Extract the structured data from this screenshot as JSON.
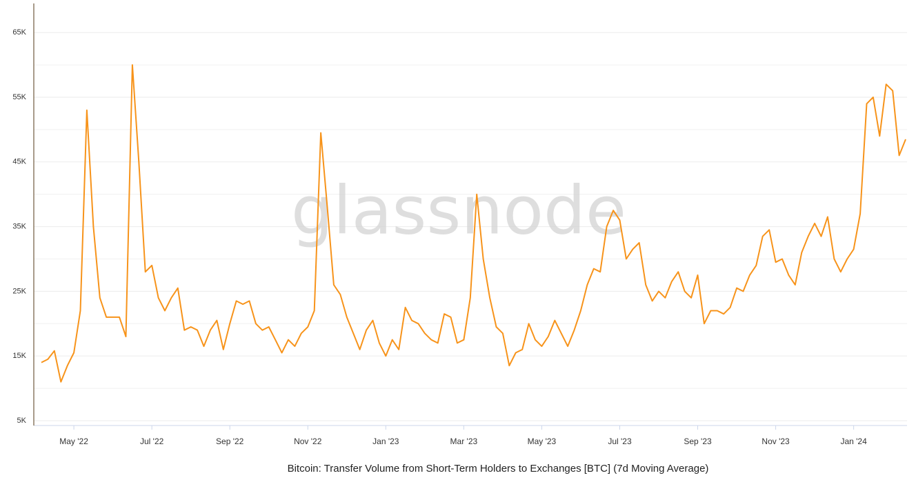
{
  "chart_data": {
    "type": "line",
    "title": "Bitcoin: Transfer Volume from Short-Term Holders to Exchanges [BTC] (7d Moving Average)",
    "watermark": "glassnode",
    "color": "#f7931a",
    "grid": true,
    "ylim": [
      4250,
      69500
    ],
    "yticks": [
      {
        "value": 5000,
        "label": "5K"
      },
      {
        "value": 15000,
        "label": "15K"
      },
      {
        "value": 25000,
        "label": "25K"
      },
      {
        "value": 35000,
        "label": "35K"
      },
      {
        "value": 45000,
        "label": "45K"
      },
      {
        "value": 55000,
        "label": "55K"
      },
      {
        "value": 65000,
        "label": "65K"
      }
    ],
    "ygrid": [
      10000,
      20000,
      30000,
      40000,
      50000,
      60000
    ],
    "categories": [
      null,
      null,
      null,
      null,
      null,
      "May '22",
      null,
      null,
      null,
      null,
      null,
      null,
      null,
      null,
      null,
      null,
      null,
      "Jul '22",
      null,
      null,
      null,
      null,
      null,
      null,
      null,
      null,
      null,
      null,
      null,
      "Sep '22",
      null,
      null,
      null,
      null,
      null,
      null,
      null,
      null,
      null,
      null,
      null,
      "Nov '22",
      null,
      null,
      null,
      null,
      null,
      null,
      null,
      null,
      null,
      null,
      null,
      "Jan '23",
      null,
      null,
      null,
      null,
      null,
      null,
      null,
      null,
      null,
      null,
      null,
      "Mar '23",
      null,
      null,
      null,
      null,
      null,
      null,
      null,
      null,
      null,
      null,
      null,
      "May '23",
      null,
      null,
      null,
      null,
      null,
      null,
      null,
      null,
      null,
      null,
      null,
      "Jul '23",
      null,
      null,
      null,
      null,
      null,
      null,
      null,
      null,
      null,
      null,
      null,
      "Sep '23",
      null,
      null,
      null,
      null,
      null,
      null,
      null,
      null,
      null,
      null,
      null,
      "Nov '23",
      null,
      null,
      null,
      null,
      null,
      null,
      null,
      null,
      null,
      null,
      null,
      "Jan '24",
      null,
      null,
      null,
      null,
      null,
      null,
      null,
      null
    ],
    "values": [
      14000,
      14500,
      15800,
      11000,
      13500,
      15500,
      22000,
      53000,
      35000,
      24000,
      21000,
      21000,
      21000,
      18000,
      60000,
      45000,
      28000,
      29000,
      24000,
      22000,
      24000,
      25500,
      19000,
      19500,
      19000,
      16500,
      19000,
      20500,
      16000,
      20000,
      23500,
      23000,
      23500,
      20000,
      19000,
      19500,
      17500,
      15500,
      17500,
      16500,
      18500,
      19500,
      22000,
      49500,
      38000,
      26000,
      24500,
      21000,
      18500,
      16000,
      19000,
      20500,
      17000,
      15000,
      17500,
      16000,
      22500,
      20500,
      20000,
      18500,
      17500,
      17000,
      21500,
      21000,
      17000,
      17500,
      24000,
      40000,
      30000,
      24000,
      19500,
      18500,
      13500,
      15500,
      16000,
      20000,
      17500,
      16500,
      18000,
      20500,
      18500,
      16500,
      19000,
      22000,
      26000,
      28500,
      28000,
      35000,
      37500,
      36000,
      30000,
      31500,
      32500,
      26000,
      23500,
      25000,
      24000,
      26500,
      28000,
      25000,
      24000,
      27500,
      20000,
      22000,
      22000,
      21500,
      22500,
      25500,
      25000,
      27500,
      29000,
      33500,
      34500,
      29500,
      30000,
      27500,
      26000,
      31000,
      33500,
      35500,
      33500,
      36500,
      30000,
      28000,
      30000,
      31500,
      37000,
      54000,
      55000,
      49000,
      57000,
      56000,
      46000,
      48500
    ]
  }
}
